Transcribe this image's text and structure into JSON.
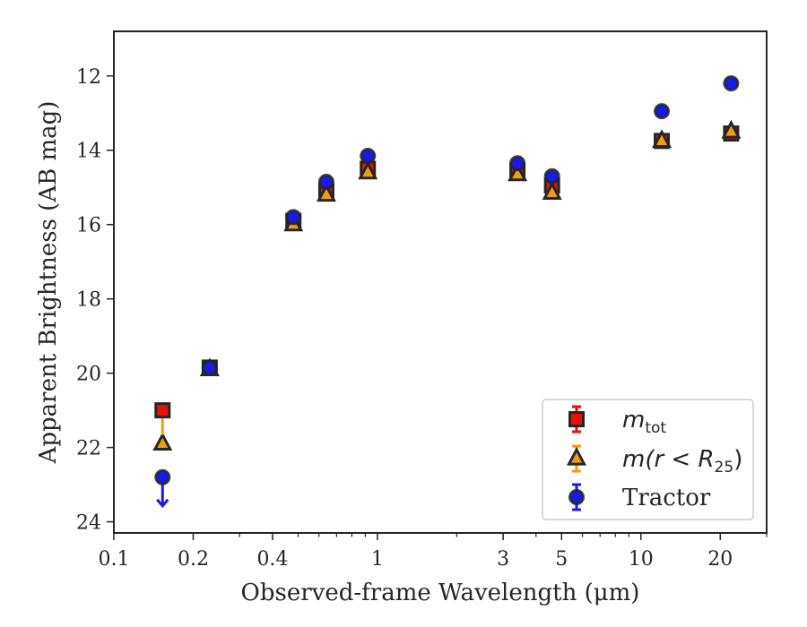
{
  "chart_data": {
    "type": "scatter",
    "xscale": "log",
    "xlim": [
      0.1,
      30
    ],
    "ylim": [
      24.3,
      10.8
    ],
    "yinverted": true,
    "xlabel": "Observed-frame Wavelength (μm)",
    "ylabel": "Apparent Brightness (AB mag)",
    "xticks": [
      {
        "value": 0.1,
        "label": "0.1"
      },
      {
        "value": 0.2,
        "label": "0.2"
      },
      {
        "value": 0.4,
        "label": "0.4"
      },
      {
        "value": 1,
        "label": "1"
      },
      {
        "value": 3,
        "label": "3"
      },
      {
        "value": 5,
        "label": "5"
      },
      {
        "value": 10,
        "label": "10"
      },
      {
        "value": 20,
        "label": "20"
      }
    ],
    "yticks": [
      {
        "value": 12,
        "label": "12"
      },
      {
        "value": 14,
        "label": "14"
      },
      {
        "value": 16,
        "label": "16"
      },
      {
        "value": 18,
        "label": "18"
      },
      {
        "value": 20,
        "label": "20"
      },
      {
        "value": 22,
        "label": "22"
      },
      {
        "value": 24,
        "label": "24"
      }
    ],
    "legend": {
      "placement": "lower right"
    },
    "series": [
      {
        "name_main": "m",
        "name_sub": "tot",
        "name_rest": "",
        "marker": "square",
        "color": "#e8110a",
        "edge": "#262626",
        "errcolor": "#e8110a",
        "points": [
          {
            "x": 0.153,
            "y": 21.0
          },
          {
            "x": 0.231,
            "y": 19.85
          },
          {
            "x": 0.48,
            "y": 15.9
          },
          {
            "x": 0.64,
            "y": 15.1
          },
          {
            "x": 0.92,
            "y": 14.5
          },
          {
            "x": 3.4,
            "y": 14.55
          },
          {
            "x": 4.6,
            "y": 14.95
          },
          {
            "x": 12.0,
            "y": 13.75
          },
          {
            "x": 22.0,
            "y": 13.55
          }
        ]
      },
      {
        "name_main": "m(r < R",
        "name_sub": "25",
        "name_rest": ")",
        "marker": "triangle",
        "color": "#f39c12",
        "edge": "#262626",
        "errcolor": "#f39c12",
        "points": [
          {
            "x": 0.153,
            "y": 21.9
          },
          {
            "x": 0.231,
            "y": 19.9
          },
          {
            "x": 0.48,
            "y": 16.0
          },
          {
            "x": 0.64,
            "y": 15.2
          },
          {
            "x": 0.92,
            "y": 14.6
          },
          {
            "x": 3.4,
            "y": 14.65
          },
          {
            "x": 4.6,
            "y": 15.15
          },
          {
            "x": 12.0,
            "y": 13.75
          },
          {
            "x": 22.0,
            "y": 13.5
          }
        ]
      },
      {
        "name_main": "Tractor",
        "name_sub": "",
        "name_rest": "",
        "marker": "circle",
        "color": "#1a1ae6",
        "edge": "#262626",
        "errcolor": "#1a1ae6",
        "points": [
          {
            "x": 0.153,
            "y": 22.8,
            "upper_limit": true
          },
          {
            "x": 0.231,
            "y": 19.85
          },
          {
            "x": 0.48,
            "y": 15.8
          },
          {
            "x": 0.64,
            "y": 14.85
          },
          {
            "x": 0.92,
            "y": 14.15
          },
          {
            "x": 3.4,
            "y": 14.35
          },
          {
            "x": 4.6,
            "y": 14.7
          },
          {
            "x": 12.0,
            "y": 12.95
          },
          {
            "x": 22.0,
            "y": 12.2
          }
        ]
      }
    ]
  }
}
